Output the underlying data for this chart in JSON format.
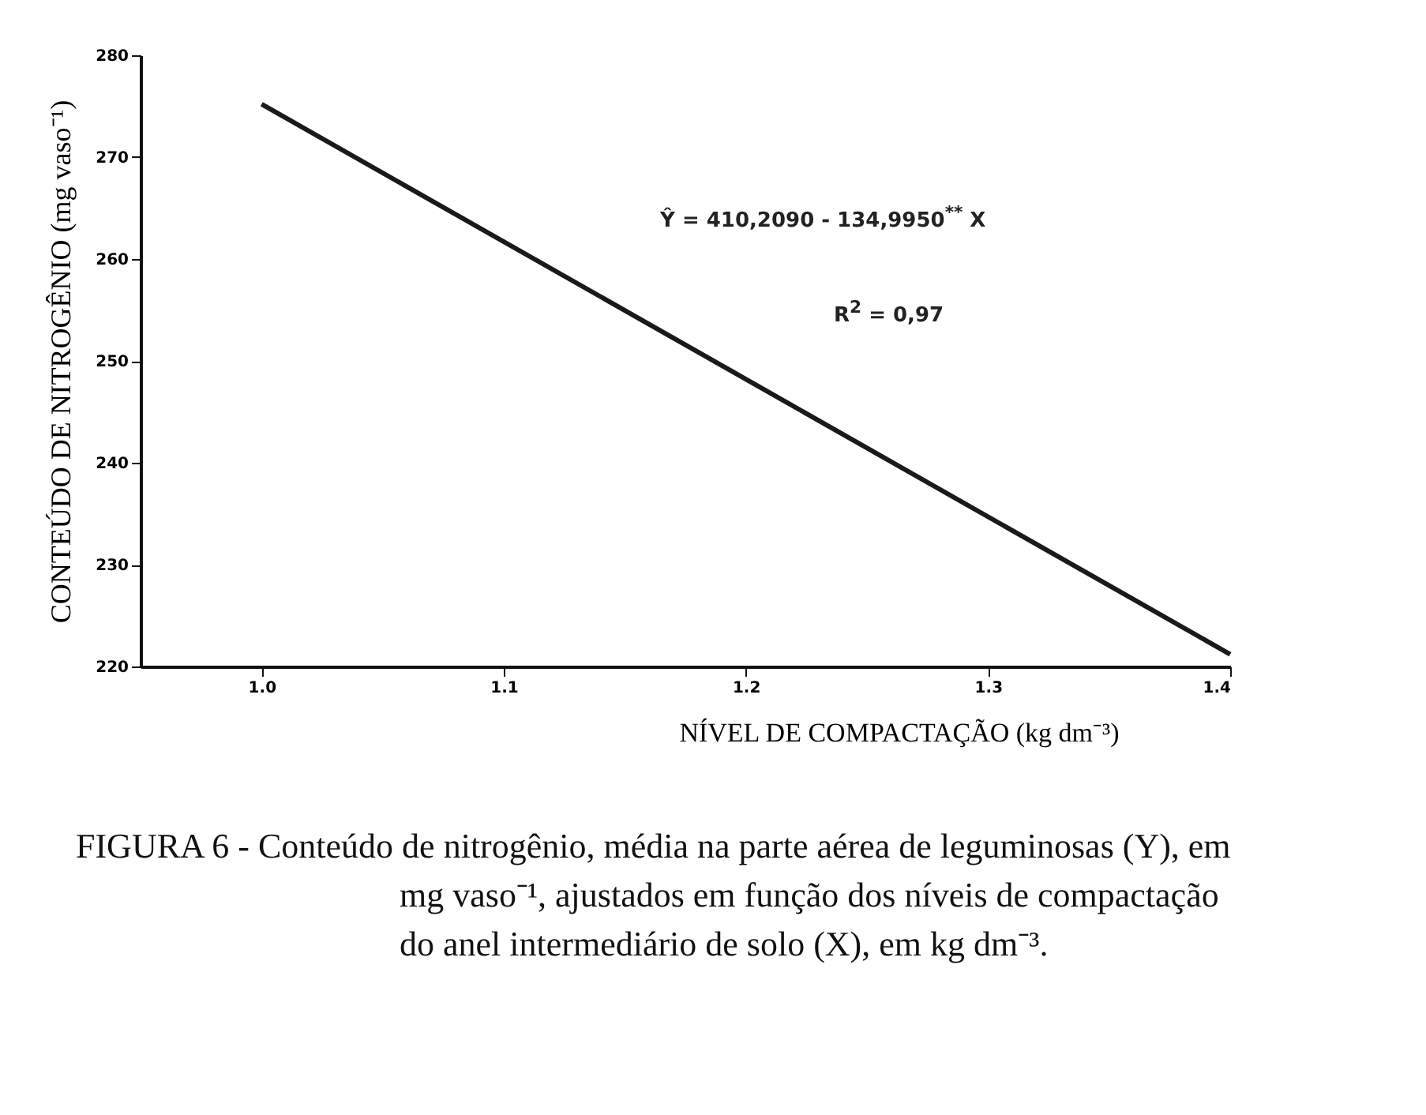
{
  "chart_data": {
    "type": "line",
    "xlabel": "NÍVEL DE COMPACTAÇÃO (kg dm⁻³)",
    "ylabel": "CONTEÚDO DE NITROGÊNIO (mg vaso⁻¹)",
    "xlim": [
      0.95,
      1.4
    ],
    "xticks": [
      {
        "value": 1.0,
        "label": "1.0"
      },
      {
        "value": 1.1,
        "label": "1.1"
      },
      {
        "value": 1.2,
        "label": "1.2"
      },
      {
        "value": 1.3,
        "label": "1.3"
      },
      {
        "value": 1.4,
        "label": "1.4"
      }
    ],
    "ylim": [
      220,
      280
    ],
    "yticks": [
      220,
      230,
      240,
      250,
      260,
      270,
      280
    ],
    "series": [
      {
        "color": "#1a1a1a",
        "x": [
          1.0,
          1.4
        ],
        "values": [
          275.2,
          221.2
        ]
      }
    ],
    "annotations": [
      "Ŷ = 410,2090 - 134,9950$^{**}$ X",
      "R$^{2}$ = 0,97",
      "FIGURA 6 - Conteúdo de nitrogênio, média na parte aérea de leguminosas (Y), em mg vaso⁻¹, ajustados em função dos níveis de compactação do anel intermediário de solo (X), em kg dm⁻³."
    ]
  }
}
